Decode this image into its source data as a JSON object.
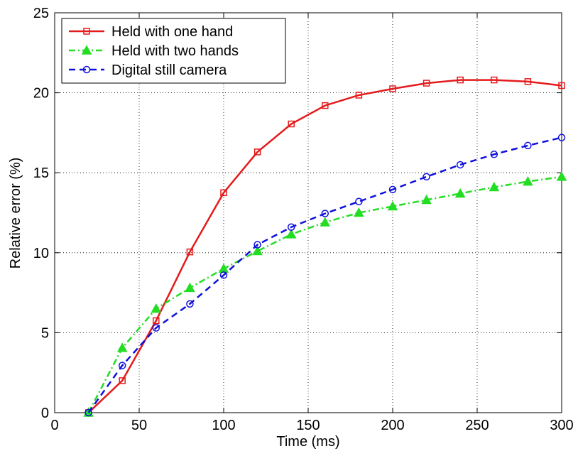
{
  "chart_data": {
    "type": "line",
    "xlabel": "Time (ms)",
    "ylabel": "Relative error (%)",
    "x": [
      20,
      40,
      60,
      80,
      100,
      120,
      140,
      160,
      180,
      200,
      220,
      240,
      260,
      280,
      300
    ],
    "series": [
      {
        "name": "Held with one hand",
        "color": "#e41a1c",
        "marker": "square",
        "dash": "solid",
        "values": [
          0,
          2.0,
          5.75,
          10.05,
          13.75,
          16.3,
          18.05,
          19.2,
          19.85,
          20.25,
          20.6,
          20.8,
          20.8,
          20.7,
          20.45
        ]
      },
      {
        "name": "Held with two hands",
        "color": "#22dd22",
        "marker": "triangle",
        "dash": "dashdot",
        "values": [
          0,
          4.05,
          6.5,
          7.8,
          9.0,
          10.1,
          11.15,
          11.9,
          12.5,
          12.9,
          13.3,
          13.7,
          14.1,
          14.45,
          14.75
        ]
      },
      {
        "name": "Digital still camera",
        "color": "#1010dd",
        "marker": "circle",
        "dash": "dashed",
        "values": [
          0,
          2.95,
          5.3,
          6.8,
          8.6,
          10.5,
          11.6,
          12.45,
          13.2,
          13.95,
          14.75,
          15.5,
          16.15,
          16.7,
          17.2
        ]
      }
    ],
    "xlim": [
      0,
      300
    ],
    "xticks": [
      0,
      50,
      100,
      150,
      200,
      250,
      300
    ],
    "ylim": [
      0,
      25
    ],
    "yticks": [
      0,
      5,
      10,
      15,
      20,
      25
    ],
    "grid": true,
    "legend": "top-left"
  }
}
